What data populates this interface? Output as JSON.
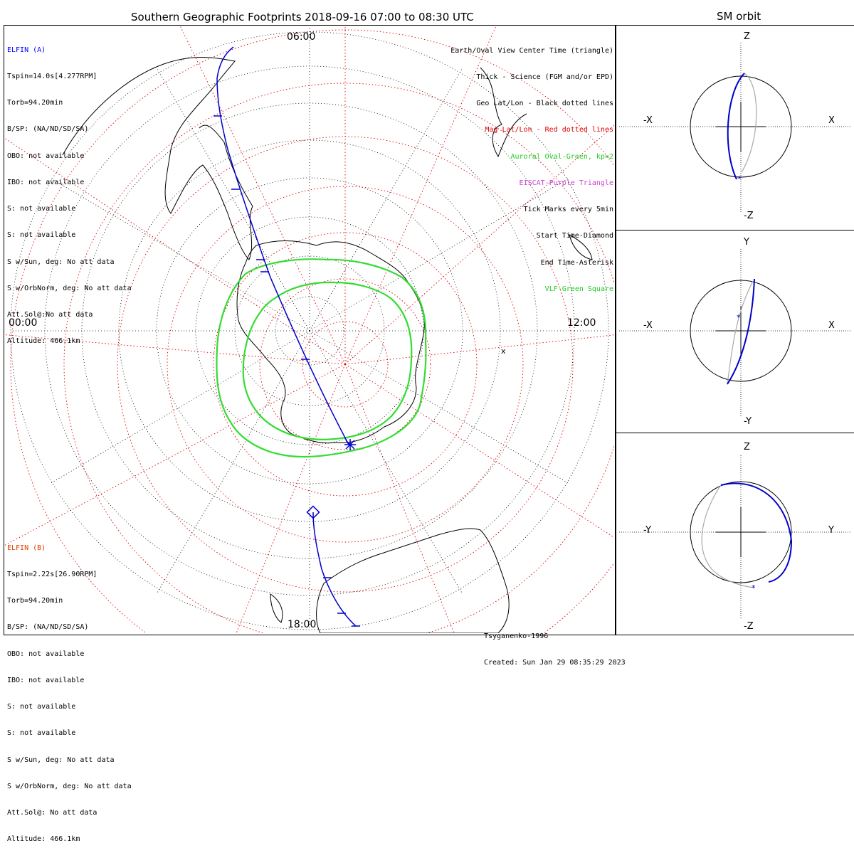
{
  "main_title": "Southern Geographic Footprints 2018-09-16 07:00 to 08:30 UTC",
  "side_title": "SM orbit",
  "time_labels": {
    "top": "06:00",
    "left": "00:00",
    "right": "12:00",
    "bottom": "18:00"
  },
  "elfin_a": {
    "name": "ELFIN (A)",
    "name_color": "#0000ff",
    "lines": [
      "Tspin=14.0s[4.277RPM]",
      "Torb=94.20min",
      "B/SP: (NA/ND/SD/SA)",
      "OBO: not available",
      "IBO: not available",
      "S: not available",
      "S: not available",
      "S w/Sun, deg: No att data",
      "S w/OrbNorm, deg: No att data",
      "Att.Sol@:No att data",
      "Altitude: 466.1km"
    ]
  },
  "elfin_b": {
    "name": "ELFIN (B)",
    "name_color": "#e04000",
    "lines": [
      "Tspin=2.22s[26.90RPM]",
      "Torb=94.20min",
      "B/SP: (NA/ND/SD/SA)",
      "OBO: not available",
      "IBO: not available",
      "S: not available",
      "S: not available",
      "S w/Sun, deg: No att data",
      "S w/OrbNorm, deg: No att data",
      "Att.Sol@: No att data",
      "Altitude: 466.1km"
    ]
  },
  "legend": [
    {
      "text": "Earth/Oval View Center Time (triangle)",
      "color": "#000000"
    },
    {
      "text": "Thick - Science (FGM and/or EPD)",
      "color": "#000000"
    },
    {
      "text": "Geo Lat/Lon - Black dotted lines",
      "color": "#000000"
    },
    {
      "text": "Mag Lat/Lon - Red dotted lines",
      "color": "#e00000"
    },
    {
      "text": "Auroral Oval-Green, kp=2",
      "color": "#22cc22"
    },
    {
      "text": "EISCAT-Purple Triangle",
      "color": "#cc44cc"
    },
    {
      "text": "Tick Marks every 5min",
      "color": "#000000"
    },
    {
      "text": "Start Time-Diamond",
      "color": "#000000"
    },
    {
      "text": "End Time-Asterisk",
      "color": "#000000"
    },
    {
      "text": "VLF-Green Square",
      "color": "#22cc22"
    }
  ],
  "credits": {
    "model": "Tsyganenko-1996",
    "created": "Created: Sun Jan 29 08:35:29 2023"
  },
  "orbit_panels": [
    {
      "top": "Z",
      "bottom": "-Z",
      "left": "-X",
      "right": "X"
    },
    {
      "top": "Y",
      "bottom": "-Y",
      "left": "-X",
      "right": "X"
    },
    {
      "top": "Z",
      "bottom": "-Z",
      "left": "-Y",
      "right": "Y"
    }
  ],
  "colors": {
    "track": "#0000cc",
    "auroral_oval": "#33dd33",
    "mag_grid": "#dd0000",
    "geo_grid": "#000000",
    "secondary_orbit": "#aaaaaa"
  }
}
